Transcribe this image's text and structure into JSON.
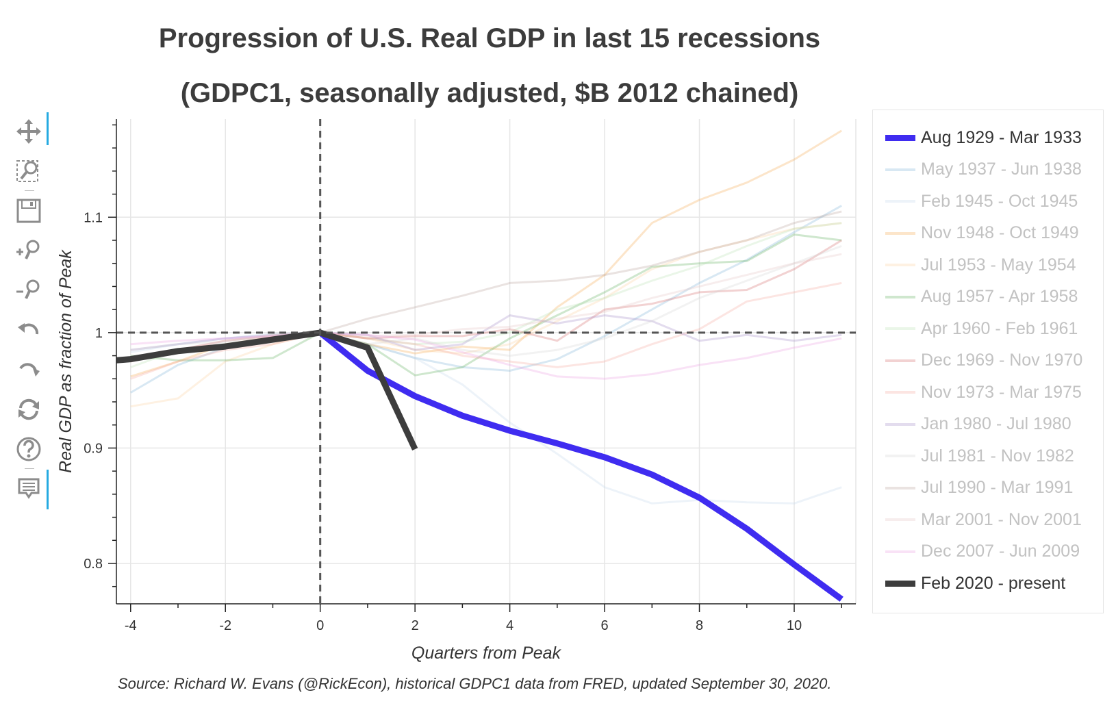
{
  "title_line1": "Progression of U.S. Real GDP in last 15 recessions",
  "title_line2": "(GDPC1, seasonally adjusted, $B 2012 chained)",
  "source_note": "Source: Richard W. Evans (@RickEcon), historical GDPC1 data from FRED, updated September 30, 2020.",
  "toolbar": {
    "tools": [
      {
        "icon": "pan-icon",
        "active": true
      },
      {
        "icon": "box-zoom-icon",
        "active": false
      },
      {
        "icon": "save-icon",
        "active": false
      },
      {
        "icon": "zoom-in-icon",
        "active": false
      },
      {
        "icon": "zoom-out-icon",
        "active": false
      },
      {
        "icon": "undo-icon",
        "active": false
      },
      {
        "icon": "redo-icon",
        "active": false
      },
      {
        "icon": "reset-icon",
        "active": false
      },
      {
        "icon": "help-icon",
        "active": false
      },
      {
        "icon": "hover-tooltip-icon",
        "active": true
      }
    ],
    "active_color": "#26aae1"
  },
  "chart_data": {
    "type": "line",
    "xlabel": "Quarters from Peak",
    "ylabel": "Real GDP as fraction of Peak",
    "xlim": [
      -4.3,
      11.3
    ],
    "ylim": [
      0.765,
      1.185
    ],
    "xticks": [
      -4,
      -2,
      0,
      2,
      4,
      6,
      8,
      10
    ],
    "xtick_labels": [
      "-4",
      "-2",
      "0",
      "2",
      "4",
      "6",
      "8",
      "10"
    ],
    "yticks": [
      0.8,
      0.9,
      1.0,
      1.1
    ],
    "ytick_labels": [
      "0.8",
      "0.9",
      "1",
      "1.1"
    ],
    "grid": true,
    "reference_lines": {
      "x": 0,
      "y": 1.0,
      "style": "dashed"
    },
    "legend_position": "right",
    "series": [
      {
        "name": "Aug 1929 - Mar 1933",
        "color": "#3f2cf0",
        "emphasis": true,
        "x": [
          0,
          1,
          2,
          3,
          4,
          5,
          6,
          7,
          8,
          9,
          10,
          11
        ],
        "y": [
          1.0,
          0.967,
          0.945,
          0.928,
          0.915,
          0.904,
          0.892,
          0.877,
          0.857,
          0.83,
          0.799,
          0.769
        ]
      },
      {
        "name": "May 1937 - Jun 1938",
        "color": "#7eb3d8",
        "emphasis": false,
        "x": [
          -4,
          -3,
          -2,
          -1,
          0,
          1,
          2,
          3,
          4,
          5,
          6,
          7,
          8,
          9,
          10,
          11
        ],
        "y": [
          0.948,
          0.972,
          0.987,
          0.995,
          1.0,
          0.99,
          0.978,
          0.97,
          0.967,
          0.977,
          0.997,
          1.02,
          1.043,
          1.063,
          1.087,
          1.11
        ]
      },
      {
        "name": "Feb 1945 - Oct 1945",
        "color": "#c4d6ea",
        "emphasis": false,
        "x": [
          -4,
          -3,
          -2,
          -1,
          0,
          1,
          2,
          3,
          4,
          5,
          6,
          7,
          8,
          9,
          10,
          11
        ],
        "y": [
          0.983,
          0.99,
          0.995,
          0.999,
          1.0,
          0.99,
          0.978,
          0.955,
          0.922,
          0.895,
          0.866,
          0.852,
          0.855,
          0.853,
          0.852,
          0.866
        ]
      },
      {
        "name": "Nov 1948 - Oct 1949",
        "color": "#f5a84e",
        "emphasis": false,
        "x": [
          -4,
          -3,
          -2,
          -1,
          0,
          1,
          2,
          3,
          4,
          5,
          6,
          7,
          8,
          9,
          10,
          11
        ],
        "y": [
          0.962,
          0.975,
          0.99,
          0.996,
          1.0,
          0.99,
          0.982,
          0.988,
          0.985,
          1.022,
          1.05,
          1.095,
          1.115,
          1.13,
          1.15,
          1.175
        ]
      },
      {
        "name": "Jul 1953 - May 1954",
        "color": "#fbd2a0",
        "emphasis": false,
        "x": [
          -4,
          -3,
          -2,
          -1,
          0,
          1,
          2,
          3,
          4,
          5,
          6,
          7,
          8,
          9,
          10,
          11
        ],
        "y": [
          0.936,
          0.943,
          0.975,
          0.99,
          1.0,
          0.995,
          0.985,
          0.982,
          0.99,
          1.01,
          1.03,
          1.055,
          1.07,
          1.08,
          1.09,
          1.095
        ]
      },
      {
        "name": "Aug 1957 - Apr 1958",
        "color": "#5fae5c",
        "emphasis": false,
        "x": [
          -4,
          -3,
          -2,
          -1,
          0,
          1,
          2,
          3,
          4,
          5,
          6,
          7,
          8,
          9,
          10,
          11
        ],
        "y": [
          0.98,
          0.976,
          0.976,
          0.978,
          1.0,
          0.99,
          0.963,
          0.97,
          0.995,
          1.015,
          1.035,
          1.057,
          1.06,
          1.062,
          1.085,
          1.08
        ]
      },
      {
        "name": "Apr 1960 - Feb 1961",
        "color": "#b9e2b2",
        "emphasis": false,
        "x": [
          -4,
          -3,
          -2,
          -1,
          0,
          1,
          2,
          3,
          4,
          5,
          6,
          7,
          8,
          9,
          10,
          11
        ],
        "y": [
          0.97,
          0.985,
          0.99,
          0.995,
          1.0,
          0.995,
          0.99,
          0.992,
          1.0,
          1.02,
          1.03,
          1.045,
          1.058,
          1.075,
          1.09,
          1.095
        ]
      },
      {
        "name": "Dec 1969 - Nov 1970",
        "color": "#d46a6a",
        "emphasis": false,
        "x": [
          -4,
          -3,
          -2,
          -1,
          0,
          1,
          2,
          3,
          4,
          5,
          6,
          7,
          8,
          9,
          10,
          11
        ],
        "y": [
          0.975,
          0.985,
          0.993,
          0.997,
          1.0,
          0.995,
          0.997,
          0.997,
          1.003,
          0.993,
          1.02,
          1.025,
          1.035,
          1.037,
          1.055,
          1.08
        ]
      },
      {
        "name": "Nov 1973 - Mar 1975",
        "color": "#f4a9a0",
        "emphasis": false,
        "x": [
          -4,
          -3,
          -2,
          -1,
          0,
          1,
          2,
          3,
          4,
          5,
          6,
          7,
          8,
          9,
          10,
          11
        ],
        "y": [
          0.96,
          0.975,
          0.985,
          0.99,
          1.0,
          0.995,
          0.99,
          0.98,
          0.975,
          0.97,
          0.975,
          0.99,
          1.003,
          1.027,
          1.035,
          1.043
        ]
      },
      {
        "name": "Jan 1980 - Jul 1980",
        "color": "#a28ac8",
        "emphasis": false,
        "x": [
          -4,
          -3,
          -2,
          -1,
          0,
          1,
          2,
          3,
          4,
          5,
          6,
          7,
          8,
          9,
          10,
          11
        ],
        "y": [
          0.985,
          0.99,
          0.995,
          0.998,
          1.0,
          0.998,
          0.985,
          0.99,
          1.015,
          1.008,
          1.015,
          1.01,
          0.993,
          0.998,
          0.993,
          0.998
        ]
      },
      {
        "name": "Jul 1981 - Nov 1982",
        "color": "#d4d4d4",
        "emphasis": false,
        "x": [
          -4,
          -3,
          -2,
          -1,
          0,
          1,
          2,
          3,
          4,
          5,
          6,
          7,
          8,
          9,
          10,
          11
        ],
        "y": [
          0.985,
          0.99,
          0.992,
          0.998,
          1.0,
          0.99,
          0.995,
          0.985,
          0.98,
          0.985,
          0.995,
          1.01,
          1.03,
          1.045,
          1.06,
          1.075
        ]
      },
      {
        "name": "Jul 1990 - Mar 1991",
        "color": "#b9a39a",
        "emphasis": false,
        "x": [
          -4,
          -3,
          -2,
          -1,
          0,
          1,
          2,
          3,
          4,
          5,
          6,
          7,
          8,
          9,
          10,
          11
        ],
        "y": [
          0.975,
          0.985,
          0.99,
          0.995,
          1.0,
          1.012,
          1.022,
          1.032,
          1.043,
          1.045,
          1.05,
          1.058,
          1.07,
          1.08,
          1.095,
          1.105
        ]
      },
      {
        "name": "Mar 2001 - Nov 2001",
        "color": "#e6c4c4",
        "emphasis": false,
        "x": [
          -4,
          -3,
          -2,
          -1,
          0,
          1,
          2,
          3,
          4,
          5,
          6,
          7,
          8,
          9,
          10,
          11
        ],
        "y": [
          0.978,
          0.985,
          0.993,
          0.998,
          1.0,
          0.997,
          0.998,
          1.003,
          1.005,
          1.012,
          1.018,
          1.03,
          1.04,
          1.05,
          1.06,
          1.068
        ]
      },
      {
        "name": "Dec 2007 - Jun 2009",
        "color": "#ec9ee0",
        "emphasis": false,
        "x": [
          -4,
          -3,
          -2,
          -1,
          0,
          1,
          2,
          3,
          4,
          5,
          6,
          7,
          8,
          9,
          10,
          11
        ],
        "y": [
          0.99,
          0.993,
          0.995,
          0.997,
          1.0,
          0.998,
          0.994,
          0.983,
          0.972,
          0.962,
          0.96,
          0.964,
          0.972,
          0.978,
          0.987,
          0.995
        ]
      },
      {
        "name": "Feb 2020 - present",
        "color": "#3d3d3d",
        "emphasis": true,
        "x": [
          -4.3,
          -4,
          -3,
          -2,
          -1,
          0,
          1,
          2
        ],
        "y": [
          0.976,
          0.977,
          0.984,
          0.988,
          0.994,
          1.0,
          0.987,
          0.899
        ]
      }
    ]
  }
}
